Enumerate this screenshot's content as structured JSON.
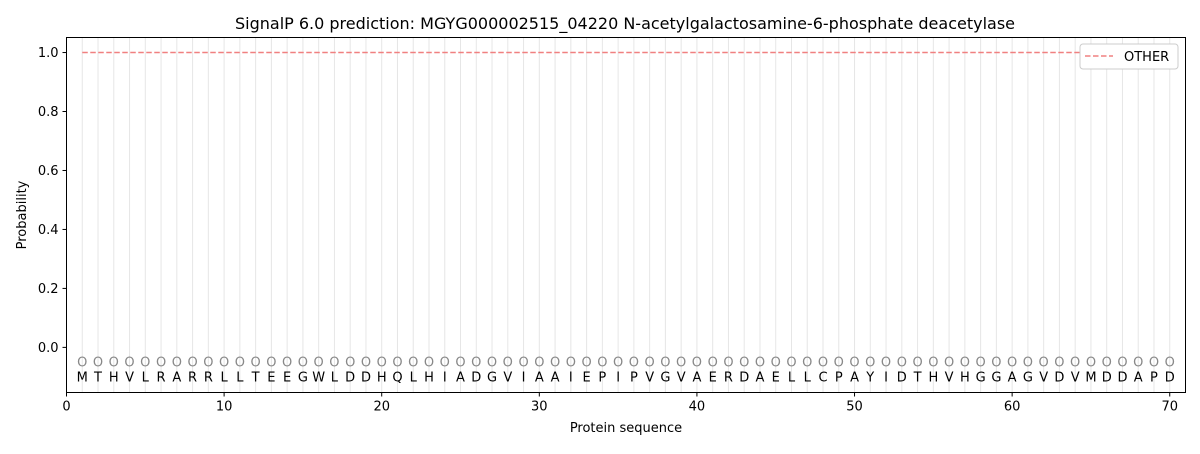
{
  "chart_data": {
    "type": "line",
    "title": "SignalP 6.0 prediction: MGYG000002515_04220 N-acetylgalactosamine-6-phosphate deacetylase",
    "xlabel": "Protein sequence",
    "ylabel": "Probability",
    "xlim": [
      0,
      71
    ],
    "ylim": [
      -0.153,
      1.051
    ],
    "xticks": [
      0,
      10,
      20,
      30,
      40,
      50,
      60,
      70
    ],
    "yticks": [
      "0.0",
      "0.2",
      "0.4",
      "0.6",
      "0.8",
      "1.0"
    ],
    "legend_position": "top-right",
    "sequence": [
      "M",
      "T",
      "H",
      "V",
      "L",
      "R",
      "A",
      "R",
      "R",
      "L",
      "L",
      "T",
      "E",
      "E",
      "G",
      "W",
      "L",
      "D",
      "D",
      "H",
      "Q",
      "L",
      "H",
      "I",
      "A",
      "D",
      "G",
      "V",
      "I",
      "A",
      "A",
      "I",
      "E",
      "P",
      "I",
      "P",
      "V",
      "G",
      "V",
      "A",
      "E",
      "R",
      "D",
      "A",
      "E",
      "L",
      "L",
      "C",
      "P",
      "A",
      "Y",
      "I",
      "D",
      "T",
      "H",
      "V",
      "H",
      "G",
      "G",
      "A",
      "G",
      "V",
      "D",
      "V",
      "M",
      "D",
      "D",
      "A",
      "P",
      "D"
    ],
    "prediction_label": "O",
    "series": [
      {
        "name": "OTHER",
        "color": "#f08080",
        "style": "dashed",
        "x_range": [
          1,
          70
        ],
        "value": 1.0
      }
    ]
  }
}
